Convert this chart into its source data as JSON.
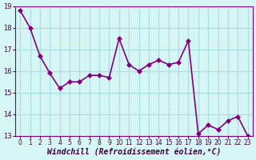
{
  "x": [
    0,
    1,
    2,
    3,
    4,
    5,
    6,
    7,
    8,
    9,
    10,
    11,
    12,
    13,
    14,
    15,
    16,
    17,
    18,
    19,
    20,
    21,
    22,
    23
  ],
  "y": [
    18.8,
    18.0,
    16.7,
    15.9,
    15.2,
    15.5,
    15.5,
    15.8,
    15.8,
    15.7,
    17.5,
    16.3,
    16.0,
    16.3,
    16.5,
    16.3,
    16.4,
    17.4,
    13.1,
    13.5,
    13.3,
    13.7,
    13.9,
    13.0
  ],
  "xlabel": "Windchill (Refroidissement éolien,°C)",
  "line_color": "#800080",
  "marker_color": "#800080",
  "bg_color": "#d6f5f5",
  "grid_color": "#aadddd",
  "ylim": [
    13,
    19
  ],
  "yticks": [
    13,
    14,
    15,
    16,
    17,
    18,
    19
  ],
  "xtick_labels": [
    "0",
    "1",
    "2",
    "3",
    "4",
    "5",
    "6",
    "7",
    "8",
    "9",
    "10",
    "11",
    "12",
    "13",
    "14",
    "15",
    "16",
    "17",
    "18",
    "19",
    "20",
    "21",
    "22",
    "23"
  ],
  "xlabel_fontsize": 7,
  "tick_fontsize": 6,
  "line_width": 1.2,
  "marker_size": 3
}
